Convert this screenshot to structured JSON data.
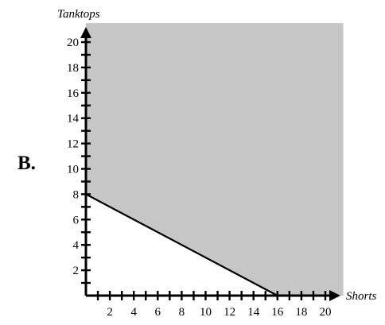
{
  "option_label": "B.",
  "chart_data": {
    "type": "area",
    "title": "",
    "xlabel": "Shorts",
    "ylabel": "Tanktops",
    "xlim": [
      0,
      21.5
    ],
    "ylim": [
      0,
      21.5
    ],
    "x_ticks": [
      2,
      4,
      6,
      8,
      10,
      12,
      14,
      16,
      18,
      20
    ],
    "y_ticks": [
      2,
      4,
      6,
      8,
      10,
      12,
      14,
      16,
      18,
      20
    ],
    "boundary_line": {
      "points": [
        [
          0,
          8
        ],
        [
          16,
          0
        ]
      ]
    },
    "shaded_region": "above the boundary line",
    "shade_color": "#c6c6c6",
    "line_color": "#000000",
    "grid": false
  }
}
